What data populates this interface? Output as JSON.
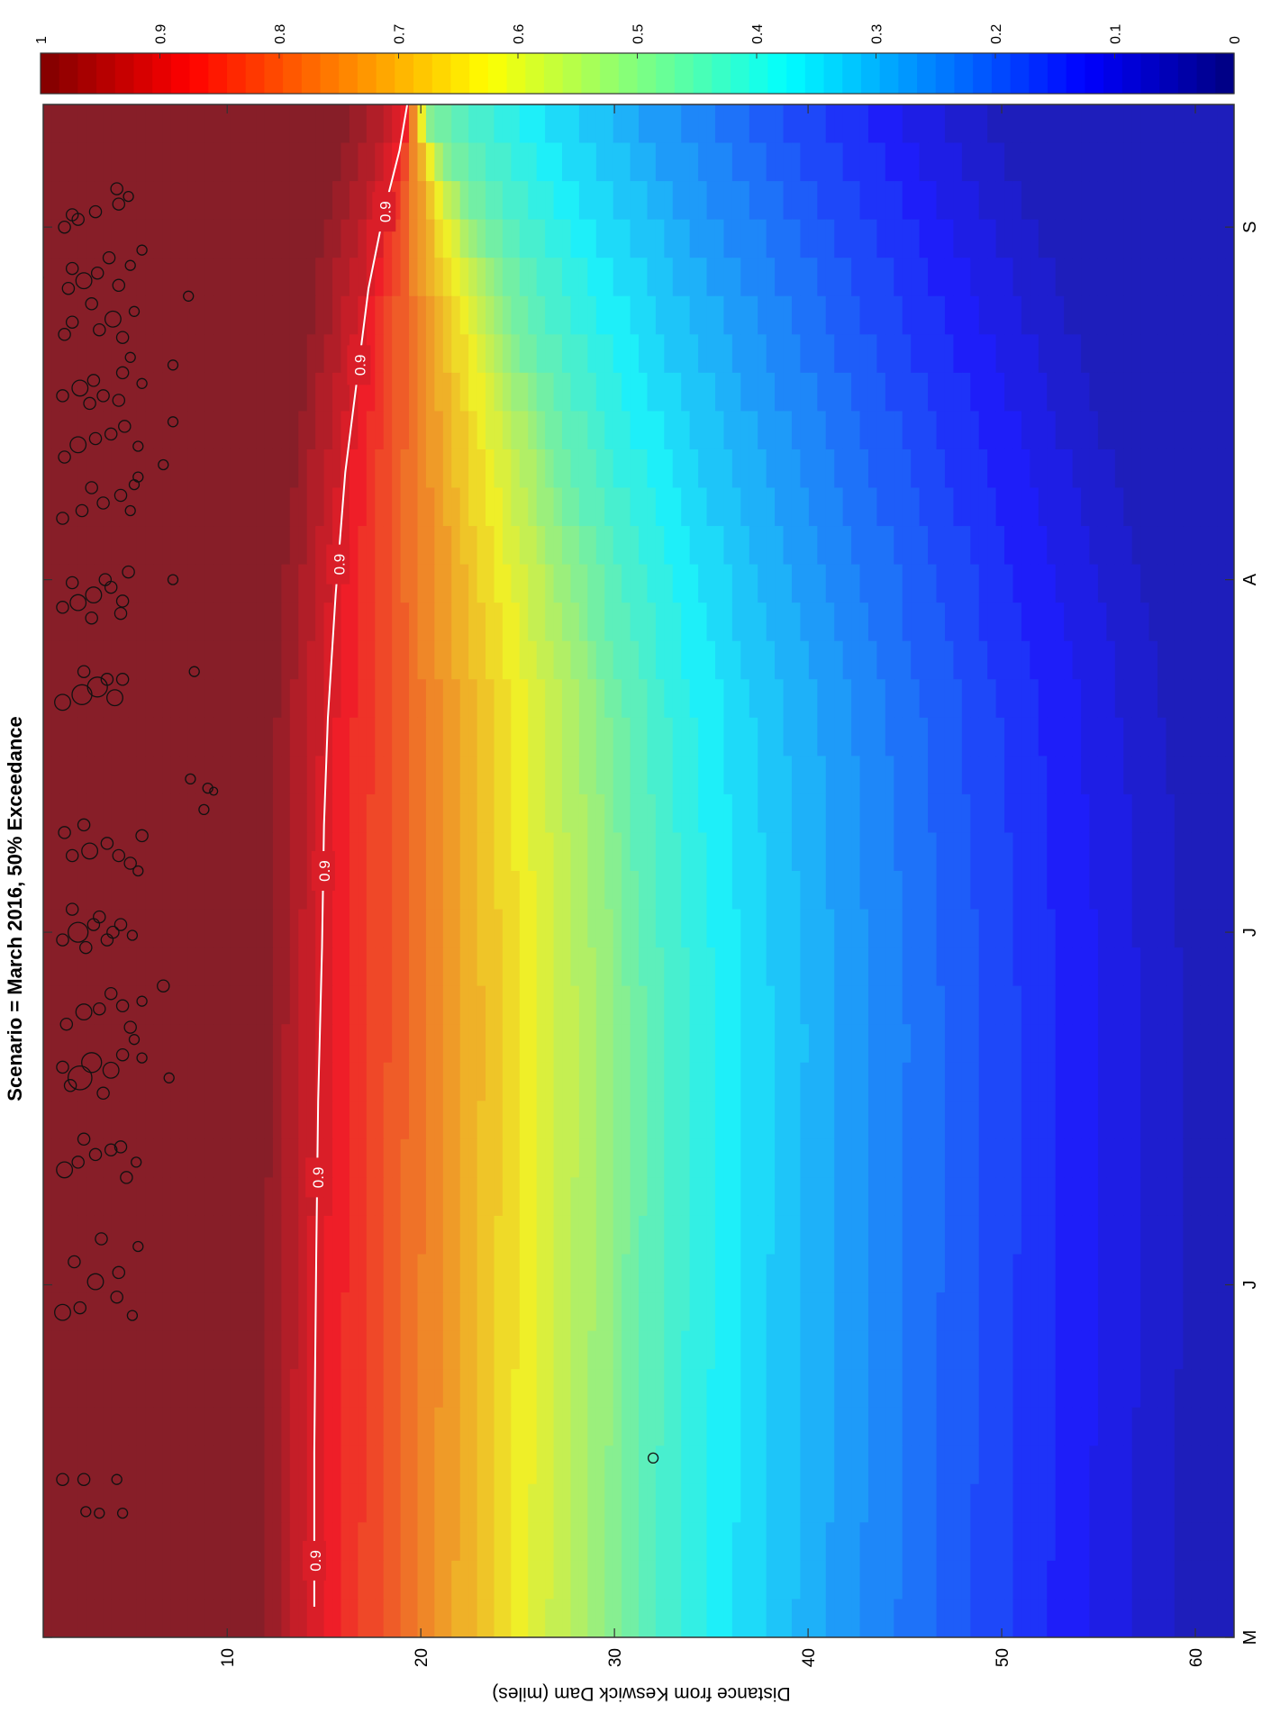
{
  "chart_data": {
    "type": "heatmap",
    "orientation": "rotated-90-clockwise",
    "title": "Scenario = March 2016, 50% Exceedance",
    "ylabel": "Distance from Keswick Dam (miles)",
    "xlabel": "",
    "y_ticks": [
      "10",
      "20",
      "30",
      "40",
      "50",
      "60"
    ],
    "y_range": [
      0.5,
      62
    ],
    "x_ticks": [
      "M",
      "J",
      "J",
      "A",
      "S"
    ],
    "colorbar": {
      "range": [
        0,
        1
      ],
      "ticks": [
        "1",
        "0.9",
        "0.8",
        "0.7",
        "0.6",
        "0.5",
        "0.4",
        "0.3",
        "0.2",
        "0.1",
        "0"
      ],
      "colormap": "jet",
      "levels": 40
    },
    "contour": {
      "level": 0.9,
      "color": "#ffffff",
      "labels": [
        "0.9",
        "0.9",
        "0.9",
        "0.9",
        "0.9",
        "0.9"
      ],
      "points": [
        [
          0.02,
          14.5
        ],
        [
          0.12,
          14.5
        ],
        [
          0.25,
          14.6
        ],
        [
          0.35,
          14.7
        ],
        [
          0.45,
          14.9
        ],
        [
          0.53,
          15.0
        ],
        [
          0.6,
          15.2
        ],
        [
          0.68,
          15.6
        ],
        [
          0.76,
          16.1
        ],
        [
          0.82,
          16.7
        ],
        [
          0.88,
          17.3
        ],
        [
          0.93,
          18.1
        ],
        [
          0.97,
          18.9
        ],
        [
          1.0,
          19.3
        ]
      ]
    },
    "field_description_profile": [
      [
        0.0,
        14.5,
        30.0
      ],
      [
        0.2,
        14.6,
        30.3
      ],
      [
        0.4,
        14.9,
        30.5
      ],
      [
        0.6,
        15.2,
        29.5
      ],
      [
        0.7,
        15.7,
        28.0
      ],
      [
        0.8,
        16.5,
        26.0
      ],
      [
        0.9,
        17.5,
        23.5
      ],
      [
        1.0,
        19.3,
        20.0
      ]
    ],
    "redds": [
      {
        "t": 0.103,
        "d": 1.5,
        "r": 3
      },
      {
        "t": 0.103,
        "d": 2.6,
        "r": 3
      },
      {
        "t": 0.103,
        "d": 4.3,
        "r": 2.5
      },
      {
        "t": 0.082,
        "d": 2.7,
        "r": 2.5
      },
      {
        "t": 0.081,
        "d": 3.4,
        "r": 2.5
      },
      {
        "t": 0.081,
        "d": 4.6,
        "r": 2.5
      },
      {
        "t": 0.117,
        "d": 32.0,
        "r": 2.5
      },
      {
        "t": 0.212,
        "d": 1.5,
        "r": 4
      },
      {
        "t": 0.215,
        "d": 2.4,
        "r": 3
      },
      {
        "t": 0.232,
        "d": 3.2,
        "r": 4
      },
      {
        "t": 0.222,
        "d": 4.3,
        "r": 3
      },
      {
        "t": 0.245,
        "d": 2.1,
        "r": 3
      },
      {
        "t": 0.238,
        "d": 4.4,
        "r": 3
      },
      {
        "t": 0.21,
        "d": 5.1,
        "r": 2.5
      },
      {
        "t": 0.255,
        "d": 5.4,
        "r": 2.5
      },
      {
        "t": 0.26,
        "d": 3.5,
        "r": 3
      },
      {
        "t": 0.305,
        "d": 1.6,
        "r": 4
      },
      {
        "t": 0.31,
        "d": 2.3,
        "r": 3
      },
      {
        "t": 0.315,
        "d": 3.2,
        "r": 3
      },
      {
        "t": 0.318,
        "d": 4.0,
        "r": 3
      },
      {
        "t": 0.3,
        "d": 4.8,
        "r": 3
      },
      {
        "t": 0.32,
        "d": 4.5,
        "r": 3
      },
      {
        "t": 0.31,
        "d": 5.3,
        "r": 2.5
      },
      {
        "t": 0.325,
        "d": 2.6,
        "r": 3
      },
      {
        "t": 0.365,
        "d": 2.4,
        "r": 6
      },
      {
        "t": 0.375,
        "d": 3.0,
        "r": 5
      },
      {
        "t": 0.37,
        "d": 4.0,
        "r": 4
      },
      {
        "t": 0.38,
        "d": 4.6,
        "r": 3
      },
      {
        "t": 0.39,
        "d": 5.2,
        "r": 2.5
      },
      {
        "t": 0.378,
        "d": 5.6,
        "r": 2.5
      },
      {
        "t": 0.365,
        "d": 7.0,
        "r": 2.5
      },
      {
        "t": 0.36,
        "d": 1.9,
        "r": 3
      },
      {
        "t": 0.355,
        "d": 3.6,
        "r": 3
      },
      {
        "t": 0.372,
        "d": 1.5,
        "r": 3
      },
      {
        "t": 0.4,
        "d": 1.7,
        "r": 3
      },
      {
        "t": 0.408,
        "d": 2.6,
        "r": 4
      },
      {
        "t": 0.41,
        "d": 3.4,
        "r": 3
      },
      {
        "t": 0.412,
        "d": 4.6,
        "r": 3
      },
      {
        "t": 0.398,
        "d": 5.0,
        "r": 3
      },
      {
        "t": 0.42,
        "d": 4.0,
        "r": 3
      },
      {
        "t": 0.425,
        "d": 6.7,
        "r": 3
      },
      {
        "t": 0.415,
        "d": 5.6,
        "r": 2.5
      },
      {
        "t": 0.455,
        "d": 1.5,
        "r": 3
      },
      {
        "t": 0.46,
        "d": 2.3,
        "r": 5
      },
      {
        "t": 0.465,
        "d": 3.1,
        "r": 3
      },
      {
        "t": 0.455,
        "d": 3.8,
        "r": 3
      },
      {
        "t": 0.465,
        "d": 4.5,
        "r": 3
      },
      {
        "t": 0.458,
        "d": 5.1,
        "r": 2.5
      },
      {
        "t": 0.45,
        "d": 2.7,
        "r": 3
      },
      {
        "t": 0.46,
        "d": 4.1,
        "r": 3
      },
      {
        "t": 0.47,
        "d": 3.4,
        "r": 3
      },
      {
        "t": 0.475,
        "d": 2.0,
        "r": 3
      },
      {
        "t": 0.51,
        "d": 2.0,
        "r": 3
      },
      {
        "t": 0.513,
        "d": 2.9,
        "r": 4
      },
      {
        "t": 0.518,
        "d": 3.8,
        "r": 3
      },
      {
        "t": 0.51,
        "d": 4.4,
        "r": 3
      },
      {
        "t": 0.505,
        "d": 5.0,
        "r": 3
      },
      {
        "t": 0.523,
        "d": 5.6,
        "r": 3
      },
      {
        "t": 0.5,
        "d": 5.4,
        "r": 2.5
      },
      {
        "t": 0.525,
        "d": 1.6,
        "r": 3
      },
      {
        "t": 0.53,
        "d": 2.6,
        "r": 3
      },
      {
        "t": 0.54,
        "d": 8.8,
        "r": 2.5
      },
      {
        "t": 0.554,
        "d": 9.0,
        "r": 2.5
      },
      {
        "t": 0.552,
        "d": 9.3,
        "r": 2
      },
      {
        "t": 0.56,
        "d": 8.1,
        "r": 2.5
      },
      {
        "t": 0.61,
        "d": 1.5,
        "r": 4
      },
      {
        "t": 0.615,
        "d": 2.5,
        "r": 5
      },
      {
        "t": 0.62,
        "d": 3.3,
        "r": 5
      },
      {
        "t": 0.613,
        "d": 4.2,
        "r": 4
      },
      {
        "t": 0.625,
        "d": 3.8,
        "r": 3
      },
      {
        "t": 0.63,
        "d": 2.6,
        "r": 3
      },
      {
        "t": 0.625,
        "d": 4.6,
        "r": 3
      },
      {
        "t": 0.63,
        "d": 8.3,
        "r": 2.5
      },
      {
        "t": 0.672,
        "d": 1.5,
        "r": 3
      },
      {
        "t": 0.675,
        "d": 2.3,
        "r": 4
      },
      {
        "t": 0.68,
        "d": 3.1,
        "r": 4
      },
      {
        "t": 0.685,
        "d": 4.0,
        "r": 3
      },
      {
        "t": 0.668,
        "d": 4.5,
        "r": 3
      },
      {
        "t": 0.69,
        "d": 3.7,
        "r": 3
      },
      {
        "t": 0.688,
        "d": 2.0,
        "r": 3
      },
      {
        "t": 0.695,
        "d": 4.9,
        "r": 3
      },
      {
        "t": 0.665,
        "d": 3.0,
        "r": 3
      },
      {
        "t": 0.69,
        "d": 7.2,
        "r": 2.5
      },
      {
        "t": 0.676,
        "d": 4.6,
        "r": 3
      },
      {
        "t": 0.73,
        "d": 1.5,
        "r": 3
      },
      {
        "t": 0.735,
        "d": 2.5,
        "r": 3
      },
      {
        "t": 0.74,
        "d": 3.6,
        "r": 3
      },
      {
        "t": 0.745,
        "d": 4.5,
        "r": 3
      },
      {
        "t": 0.752,
        "d": 5.2,
        "r": 2.5
      },
      {
        "t": 0.735,
        "d": 5.0,
        "r": 2.5
      },
      {
        "t": 0.75,
        "d": 3.0,
        "r": 3
      },
      {
        "t": 0.757,
        "d": 5.4,
        "r": 2.5
      },
      {
        "t": 0.77,
        "d": 1.6,
        "r": 3
      },
      {
        "t": 0.778,
        "d": 2.3,
        "r": 4
      },
      {
        "t": 0.782,
        "d": 3.2,
        "r": 3
      },
      {
        "t": 0.785,
        "d": 4.0,
        "r": 3
      },
      {
        "t": 0.79,
        "d": 4.7,
        "r": 3
      },
      {
        "t": 0.777,
        "d": 5.4,
        "r": 2.5
      },
      {
        "t": 0.765,
        "d": 6.7,
        "r": 2.5
      },
      {
        "t": 0.793,
        "d": 7.2,
        "r": 2.5
      },
      {
        "t": 0.81,
        "d": 1.5,
        "r": 3
      },
      {
        "t": 0.815,
        "d": 2.4,
        "r": 4
      },
      {
        "t": 0.82,
        "d": 3.1,
        "r": 3
      },
      {
        "t": 0.81,
        "d": 3.6,
        "r": 3
      },
      {
        "t": 0.825,
        "d": 4.6,
        "r": 3
      },
      {
        "t": 0.818,
        "d": 5.6,
        "r": 2.5
      },
      {
        "t": 0.83,
        "d": 7.2,
        "r": 2.5
      },
      {
        "t": 0.805,
        "d": 2.9,
        "r": 3
      },
      {
        "t": 0.835,
        "d": 5.0,
        "r": 2.5
      },
      {
        "t": 0.807,
        "d": 4.4,
        "r": 3
      },
      {
        "t": 0.85,
        "d": 1.6,
        "r": 3
      },
      {
        "t": 0.858,
        "d": 2.0,
        "r": 3
      },
      {
        "t": 0.853,
        "d": 3.4,
        "r": 3
      },
      {
        "t": 0.86,
        "d": 4.1,
        "r": 4
      },
      {
        "t": 0.848,
        "d": 4.6,
        "r": 3
      },
      {
        "t": 0.865,
        "d": 5.2,
        "r": 2.5
      },
      {
        "t": 0.87,
        "d": 3.0,
        "r": 3
      },
      {
        "t": 0.875,
        "d": 8.0,
        "r": 2.5
      },
      {
        "t": 0.88,
        "d": 1.8,
        "r": 3
      },
      {
        "t": 0.885,
        "d": 2.6,
        "r": 4
      },
      {
        "t": 0.89,
        "d": 3.3,
        "r": 3
      },
      {
        "t": 0.882,
        "d": 4.4,
        "r": 3
      },
      {
        "t": 0.895,
        "d": 5.0,
        "r": 2.5
      },
      {
        "t": 0.893,
        "d": 2.0,
        "r": 3
      },
      {
        "t": 0.9,
        "d": 3.9,
        "r": 3
      },
      {
        "t": 0.905,
        "d": 5.6,
        "r": 2.5
      },
      {
        "t": 0.887,
        "d": 0.3,
        "r": 2
      },
      {
        "t": 0.92,
        "d": 1.6,
        "r": 3
      },
      {
        "t": 0.925,
        "d": 2.3,
        "r": 3
      },
      {
        "t": 0.93,
        "d": 3.2,
        "r": 3
      },
      {
        "t": 0.935,
        "d": 4.4,
        "r": 3
      },
      {
        "t": 0.94,
        "d": 4.9,
        "r": 2.5
      },
      {
        "t": 0.928,
        "d": 2.0,
        "r": 3
      },
      {
        "t": 0.945,
        "d": 4.3,
        "r": 3
      }
    ]
  }
}
